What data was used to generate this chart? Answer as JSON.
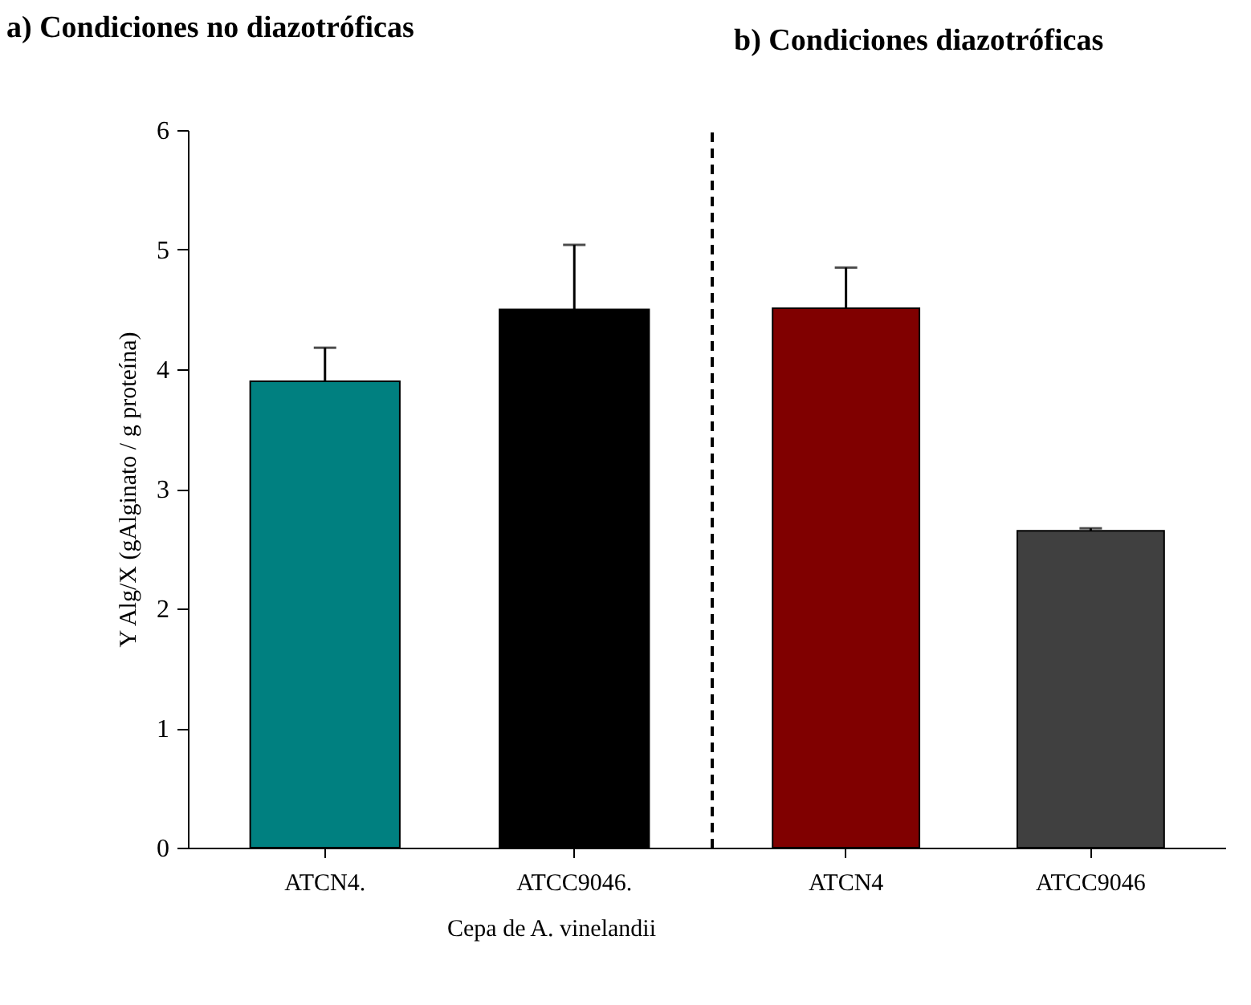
{
  "chart_data": [
    {
      "type": "bar",
      "title": "a) Condiciones no diazotróficas",
      "xlabel": "Cepa de A. vinelandii",
      "ylabel": "Y Alg/X (gAlginato / g proteína)",
      "categories": [
        "ATCN4.",
        "ATCC9046."
      ],
      "colors": [
        "#008080",
        "#000000"
      ],
      "values": [
        3.9,
        4.5
      ],
      "errors": [
        [
          3.9,
          4.18
        ],
        [
          4.5,
          5.04
        ]
      ],
      "ylim": [
        0,
        6
      ],
      "yticks": [
        0,
        1,
        2,
        3,
        4,
        5,
        6
      ],
      "grid": false
    },
    {
      "type": "bar",
      "title": "b) Condiciones diazotróficas",
      "categories": [
        "ATCN4",
        "ATCC9046"
      ],
      "colors": [
        "#800000",
        "#404040"
      ],
      "values": [
        4.51,
        2.65
      ],
      "errors": [
        [
          4.51,
          4.85
        ],
        [
          2.65,
          2.67
        ]
      ],
      "ylim": [
        0,
        6
      ],
      "yticks": [
        0,
        1,
        2,
        3,
        4,
        5,
        6
      ],
      "tick_labels": "x",
      "grid": false
    }
  ]
}
